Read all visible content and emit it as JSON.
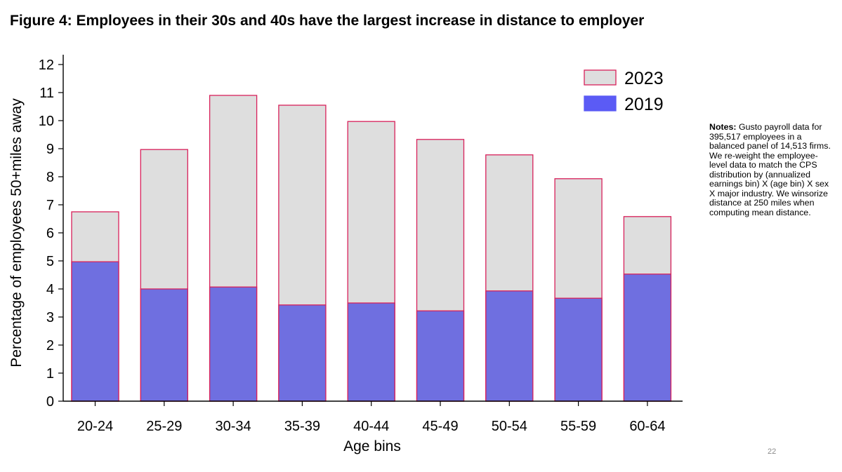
{
  "page": {
    "title": "Figure 4: Employees in their 30s and 40s have the largest increase in distance to employer",
    "page_number": "22"
  },
  "notes": {
    "label": "Notes:",
    "text": " Gusto payroll data for 395,517 employees in a balanced panel of 14,513 firms. We re-weight the employee-level data to match the CPS distribution by (annualized earnings bin) X (age bin) X sex X major industry. We winsorize distance at 250 miles when computing mean distance."
  },
  "colors": {
    "bar_2023_fill": "#dedede",
    "bar_2019_fill": "#6f6fe0",
    "bar_outline": "#d8205a",
    "legend_2019_fill": "#5b5bf5"
  },
  "chart_data": {
    "type": "bar",
    "title": "Figure 4: Employees in their 30s and 40s have the largest increase in distance to employer",
    "xlabel": "Age bins",
    "ylabel": "Percentage of employees 50+miles away",
    "ylim": [
      0,
      12
    ],
    "yticks": [
      "0",
      "1",
      "2",
      "3",
      "4",
      "5",
      "6",
      "7",
      "8",
      "9",
      "10",
      "11",
      "12"
    ],
    "categories": [
      "20-24",
      "25-29",
      "30-34",
      "35-39",
      "40-44",
      "45-49",
      "50-54",
      "55-59",
      "60-64"
    ],
    "series": [
      {
        "name": "2023",
        "values": [
          6.75,
          8.97,
          10.9,
          10.55,
          9.97,
          9.33,
          8.78,
          7.93,
          6.58
        ]
      },
      {
        "name": "2019",
        "values": [
          4.97,
          4.0,
          4.07,
          3.43,
          3.5,
          3.22,
          3.93,
          3.67,
          4.53
        ]
      }
    ],
    "legend": {
      "position": "top-right",
      "entries": [
        "2023",
        "2019"
      ]
    },
    "grid": false
  }
}
